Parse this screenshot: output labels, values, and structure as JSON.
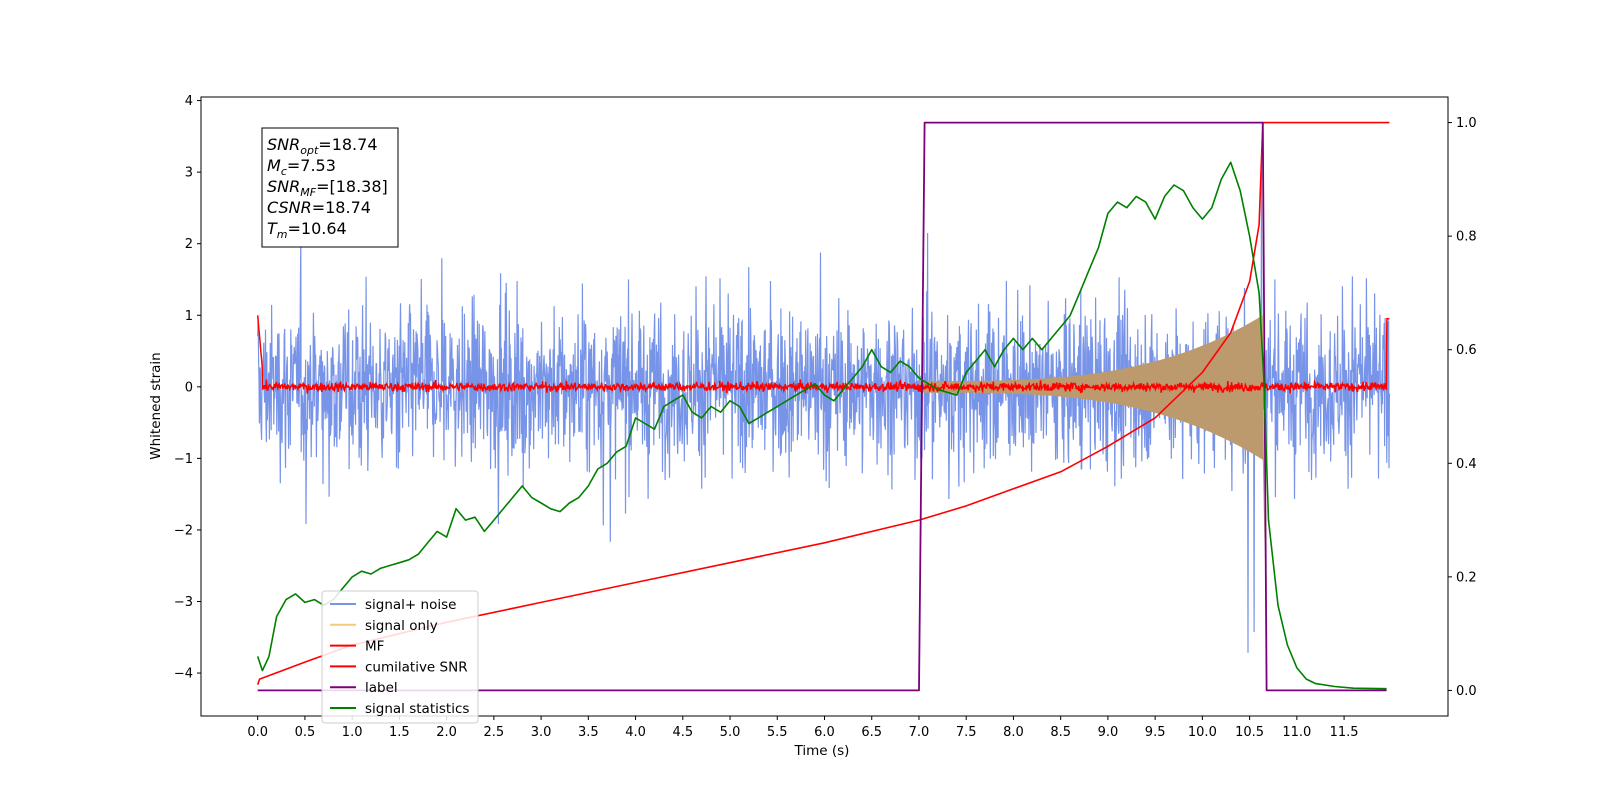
{
  "chart_data": {
    "type": "line",
    "xlabel": "Time (s)",
    "ylabel": "Whitened strain",
    "xlim": [
      -0.6,
      12.6
    ],
    "ylim": [
      -4.6,
      4.05
    ],
    "y2lim": [
      -0.045,
      1.045
    ],
    "x_ticks": [
      "0.0",
      "0.5",
      "1.0",
      "1.5",
      "2.0",
      "2.5",
      "3.0",
      "3.5",
      "4.0",
      "4.5",
      "5.0",
      "5.5",
      "6.0",
      "6.5",
      "7.0",
      "7.5",
      "8.0",
      "8.5",
      "9.0",
      "9.5",
      "10.0",
      "10.5",
      "11.0",
      "11.5"
    ],
    "x_tick_values": [
      0,
      0.5,
      1,
      1.5,
      2,
      2.5,
      3,
      3.5,
      4,
      4.5,
      5,
      5.5,
      6,
      6.5,
      7,
      7.5,
      8,
      8.5,
      9,
      9.5,
      10,
      10.5,
      11,
      11.5
    ],
    "y_ticks": [
      "4",
      "3",
      "2",
      "1",
      "0",
      "−1",
      "−2",
      "−3",
      "−4"
    ],
    "y_tick_values": [
      4,
      3,
      2,
      1,
      0,
      -1,
      -2,
      -3,
      -4
    ],
    "y2_ticks": [
      "1.0",
      "0.8",
      "0.6",
      "0.4",
      "0.2",
      "0.0"
    ],
    "y2_tick_values": [
      1.0,
      0.8,
      0.6,
      0.4,
      0.2,
      0.0
    ],
    "grid": false,
    "legend_position": "bottom-left",
    "annotation": {
      "lines": [
        {
          "sym": "SNR",
          "sub": "opt",
          "value": "=18.74"
        },
        {
          "sym": "M",
          "sub": "c",
          "value": "=7.53"
        },
        {
          "sym": "SNR",
          "sub": "MF",
          "value": "=[18.38]"
        },
        {
          "sym": "CSNR",
          "sub": "",
          "value": "=18.74"
        },
        {
          "sym": "T",
          "sub": "m",
          "value": "=10.64"
        }
      ]
    },
    "series": [
      {
        "name": "signal+ noise",
        "color": "#7894e8",
        "axis": "left",
        "style": "noise band, amplitude ~1.3 with spikes to ~3.6",
        "x_range": [
          0,
          11.98
        ]
      },
      {
        "name": "signal only",
        "color": "#f5c97a",
        "axis": "left",
        "style": "chirp envelope growing to ~1.0 at 10.64 s",
        "x_range": [
          7.0,
          10.64
        ]
      },
      {
        "name": "MF",
        "color": "#ff0000",
        "axis": "left",
        "style": "noisy trace near 0",
        "x_range": [
          0,
          11.98
        ]
      },
      {
        "name": "cumilative SNR",
        "color": "#ff0000",
        "axis": "right",
        "x": [
          0,
          0.02,
          0.5,
          1,
          2,
          3,
          4,
          5,
          6,
          7,
          7.5,
          8,
          8.5,
          9,
          9.5,
          10,
          10.3,
          10.5,
          10.6,
          10.64,
          11.98
        ],
        "y": [
          0.01,
          0.02,
          0.05,
          0.08,
          0.12,
          0.155,
          0.19,
          0.225,
          0.26,
          0.3,
          0.325,
          0.355,
          0.385,
          0.43,
          0.48,
          0.56,
          0.63,
          0.72,
          0.82,
          1.0,
          1.0
        ]
      },
      {
        "name": "label",
        "color": "#7b007b",
        "axis": "right",
        "x": [
          0,
          7.0,
          7.06,
          10.64,
          10.68,
          11.95
        ],
        "y": [
          0,
          0,
          1,
          1,
          0,
          0
        ]
      },
      {
        "name": "signal statistics",
        "color": "#008000",
        "axis": "right",
        "x": [
          0,
          0.05,
          0.12,
          0.2,
          0.3,
          0.4,
          0.5,
          0.6,
          0.7,
          0.8,
          0.9,
          1.0,
          1.1,
          1.2,
          1.3,
          1.4,
          1.5,
          1.6,
          1.7,
          1.8,
          1.9,
          2.0,
          2.1,
          2.2,
          2.3,
          2.4,
          2.5,
          2.6,
          2.7,
          2.8,
          2.9,
          3.0,
          3.1,
          3.2,
          3.3,
          3.4,
          3.5,
          3.6,
          3.7,
          3.8,
          3.9,
          4.0,
          4.1,
          4.2,
          4.3,
          4.4,
          4.5,
          4.6,
          4.7,
          4.8,
          4.9,
          5.0,
          5.1,
          5.2,
          5.3,
          5.4,
          5.5,
          5.6,
          5.7,
          5.8,
          5.9,
          6.0,
          6.1,
          6.2,
          6.3,
          6.4,
          6.5,
          6.6,
          6.7,
          6.8,
          6.9,
          7.0,
          7.1,
          7.2,
          7.3,
          7.4,
          7.5,
          7.6,
          7.7,
          7.8,
          7.9,
          8.0,
          8.1,
          8.2,
          8.3,
          8.4,
          8.5,
          8.6,
          8.7,
          8.8,
          8.9,
          9.0,
          9.1,
          9.2,
          9.3,
          9.4,
          9.5,
          9.6,
          9.7,
          9.8,
          9.9,
          10.0,
          10.1,
          10.2,
          10.3,
          10.4,
          10.5,
          10.6,
          10.65,
          10.7,
          10.8,
          10.9,
          11.0,
          11.1,
          11.2,
          11.4,
          11.6,
          11.95
        ],
        "y": [
          0.06,
          0.035,
          0.06,
          0.13,
          0.16,
          0.17,
          0.155,
          0.16,
          0.15,
          0.16,
          0.18,
          0.2,
          0.21,
          0.205,
          0.215,
          0.22,
          0.225,
          0.23,
          0.24,
          0.26,
          0.28,
          0.27,
          0.32,
          0.3,
          0.305,
          0.28,
          0.3,
          0.32,
          0.34,
          0.36,
          0.34,
          0.33,
          0.32,
          0.315,
          0.33,
          0.34,
          0.36,
          0.39,
          0.4,
          0.42,
          0.43,
          0.48,
          0.47,
          0.46,
          0.5,
          0.51,
          0.52,
          0.49,
          0.48,
          0.5,
          0.49,
          0.51,
          0.5,
          0.47,
          0.48,
          0.49,
          0.5,
          0.51,
          0.52,
          0.53,
          0.54,
          0.52,
          0.51,
          0.53,
          0.55,
          0.57,
          0.6,
          0.57,
          0.56,
          0.58,
          0.57,
          0.55,
          0.54,
          0.53,
          0.525,
          0.52,
          0.56,
          0.58,
          0.6,
          0.57,
          0.6,
          0.62,
          0.6,
          0.62,
          0.6,
          0.62,
          0.64,
          0.66,
          0.7,
          0.74,
          0.78,
          0.84,
          0.86,
          0.85,
          0.87,
          0.86,
          0.83,
          0.87,
          0.89,
          0.88,
          0.85,
          0.83,
          0.85,
          0.9,
          0.93,
          0.88,
          0.8,
          0.7,
          0.55,
          0.3,
          0.15,
          0.08,
          0.04,
          0.02,
          0.012,
          0.007,
          0.004,
          0.003
        ]
      }
    ]
  }
}
